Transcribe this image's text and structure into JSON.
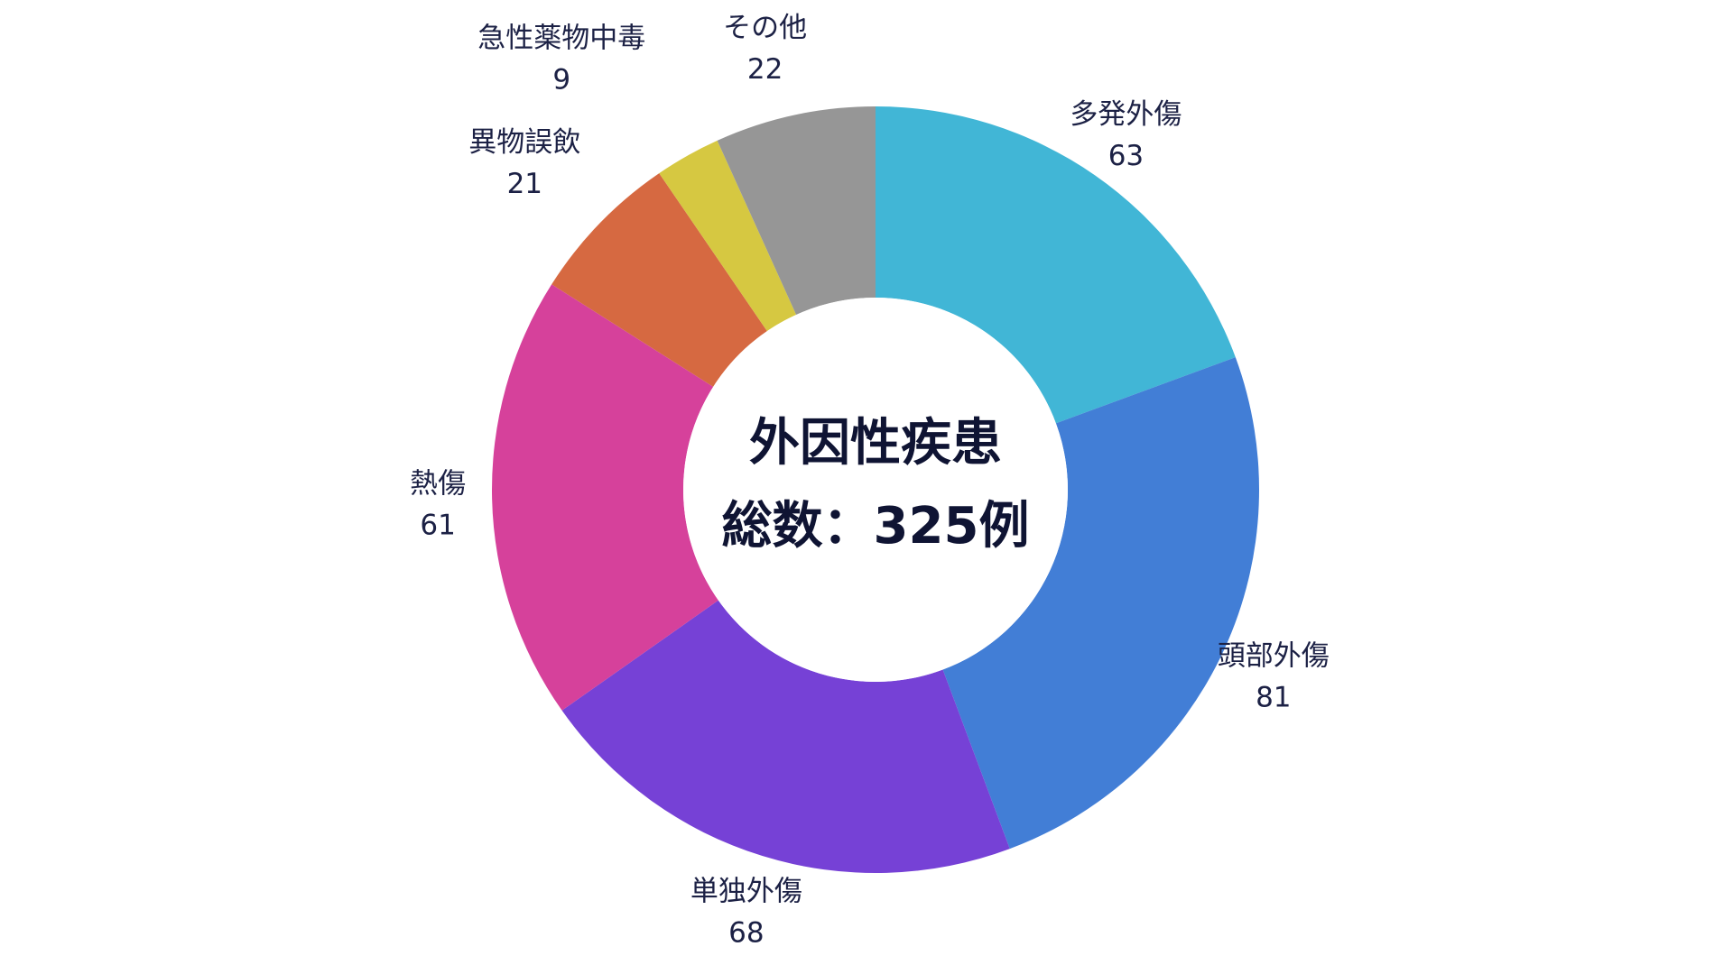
{
  "chart_data": {
    "type": "pie",
    "style": "donut",
    "center_text": [
      "外因性疾患",
      "総数：325例"
    ],
    "categories": [
      "多発外傷",
      "頭部外傷",
      "単独外傷",
      "熱傷",
      "異物誤飲",
      "急性薬物中毒",
      "その他"
    ],
    "values": [
      63,
      81,
      68,
      61,
      21,
      9,
      22
    ],
    "colors": [
      "#41b6d6",
      "#427ed6",
      "#7641d6",
      "#d6419b",
      "#d66941",
      "#d6c841",
      "#969696"
    ],
    "total": 325,
    "start_angle_deg": 0,
    "direction": "clockwise",
    "labels_show": [
      "category",
      "value"
    ]
  }
}
